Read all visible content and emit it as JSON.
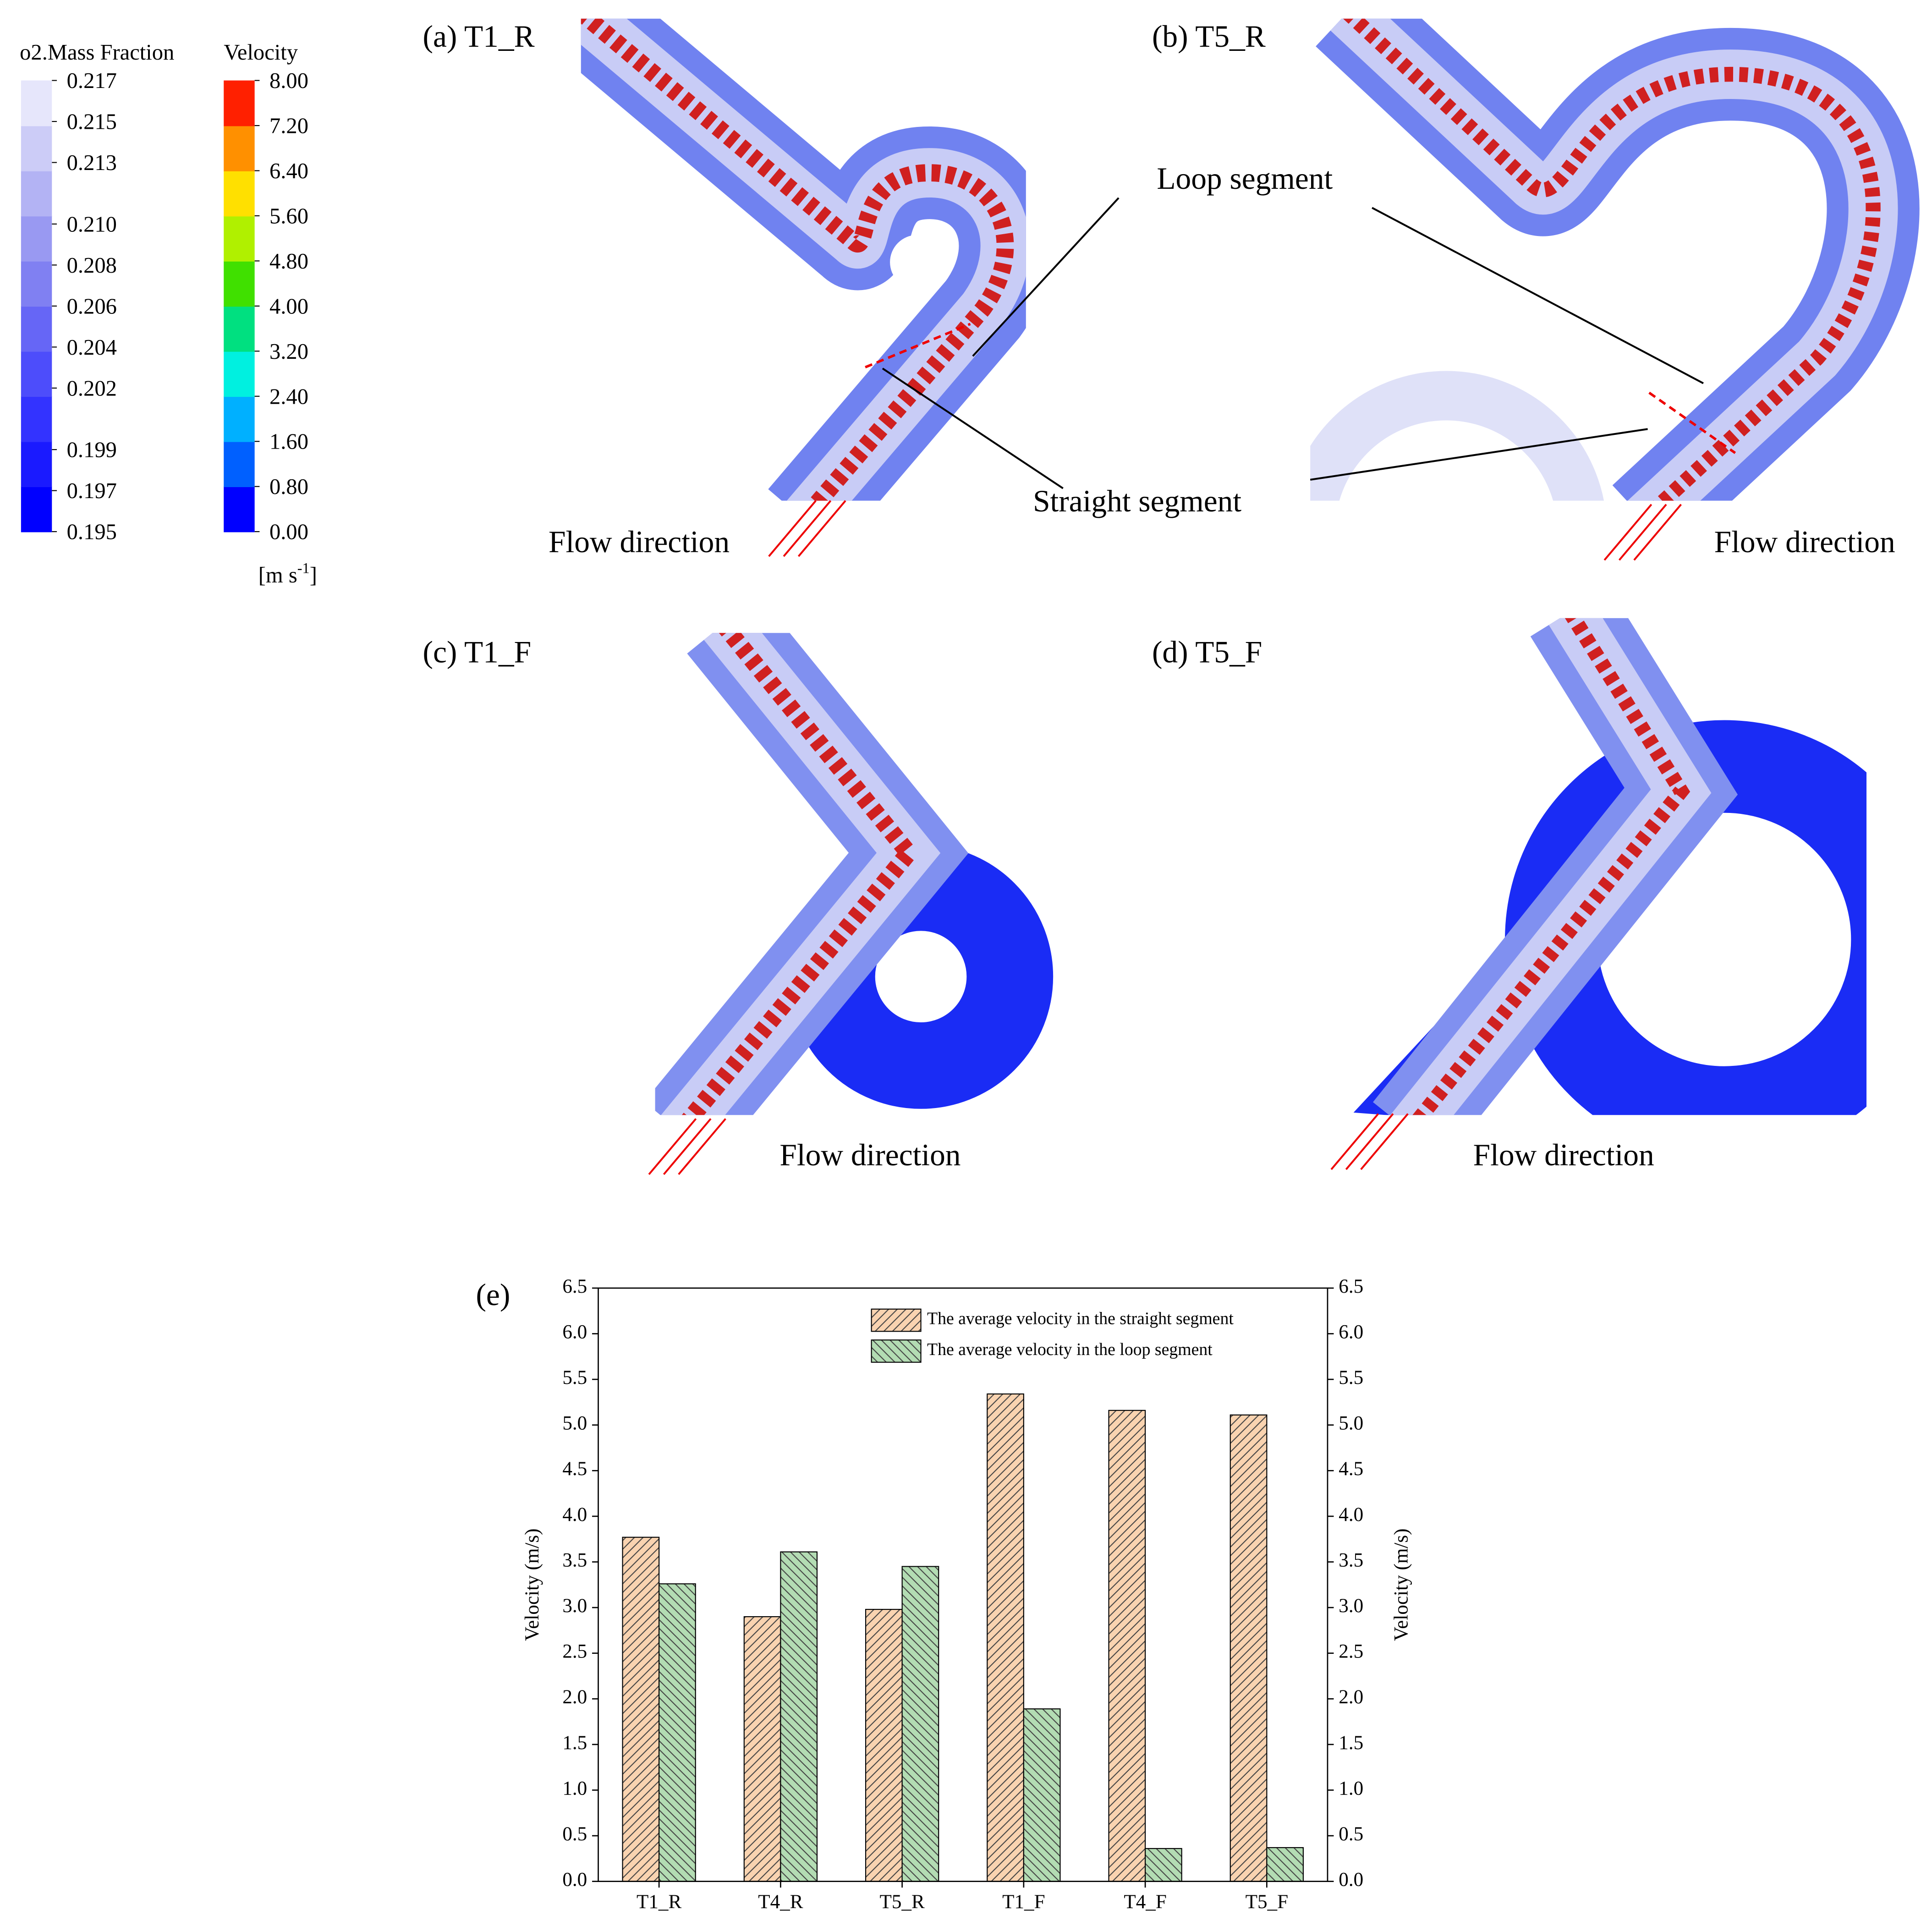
{
  "colorbars": [
    {
      "title": "o2.Mass Fraction",
      "lim": [
        0.195,
        0.217
      ],
      "ticks": [
        0.217,
        0.215,
        0.213,
        {
          "value": 0.21,
          "label": "0.210"
        },
        0.208,
        0.206,
        0.204,
        0.202,
        0.199,
        0.197,
        0.195
      ],
      "colors": [
        "#0000ff",
        "#1a1aff",
        "#3333ff",
        "#4d4dfb",
        "#6666f6",
        "#8080f2",
        "#9999f2",
        "#b3b3f4",
        "#ccccf7",
        "#e6e6fb"
      ]
    },
    {
      "title": "Velocity",
      "lim": [
        0,
        8
      ],
      "ticks": [
        {
          "value": 8,
          "label": "8.00"
        },
        {
          "value": 7.2,
          "label": "7.20"
        },
        {
          "value": 6.4,
          "label": "6.40"
        },
        {
          "value": 5.6,
          "label": "5.60"
        },
        {
          "value": 4.8,
          "label": "4.80"
        },
        {
          "value": 4,
          "label": "4.00"
        },
        {
          "value": 3.2,
          "label": "3.20"
        },
        {
          "value": 2.4,
          "label": "2.40"
        },
        {
          "value": 1.6,
          "label": "1.60"
        },
        {
          "value": 0.8,
          "label": "0.80"
        },
        {
          "value": 0,
          "label": "0.00"
        }
      ],
      "colors": [
        "#0000ff",
        "#0060ff",
        "#00b0ff",
        "#00f0e0",
        "#00e080",
        "#40e000",
        "#b0f000",
        "#ffe000",
        "#ff9000",
        "#ff2000"
      ],
      "unit": [
        "[m s",
        "-1",
        "]"
      ]
    }
  ],
  "panels": [
    {
      "label": "(a) T1_R"
    },
    {
      "label": "(b) T5_R"
    },
    {
      "label": "(c) T1_F"
    },
    {
      "label": "(d) T5_F"
    }
  ],
  "annotations": {
    "loop_segment": "Loop segment",
    "straight_segment": "Straight segment",
    "flow_direction": [
      "Flow direction",
      "Flow direction",
      "Flow direction",
      "Flow direction"
    ]
  },
  "chart_data": {
    "type": "bar",
    "title": "(e)",
    "categories": [
      "T1_R",
      "T4_R",
      "T5_R",
      "T1_F",
      "T4_F",
      "T5_F"
    ],
    "series": [
      {
        "name": "The average velocity in the straight segment",
        "color": "#f9d3b0",
        "hatch": "/",
        "values": [
          3.77,
          2.9,
          2.98,
          5.34,
          5.16,
          5.11
        ]
      },
      {
        "name": "The average velocity in the loop segment",
        "color": "#b3dcb3",
        "hatch": "\\",
        "values": [
          3.26,
          3.61,
          3.45,
          1.89,
          0.36,
          0.37
        ]
      }
    ],
    "ylabel": "Velocity (m/s)",
    "y2label": "Velocity (m/s)",
    "ylim": [
      0,
      6.5
    ],
    "y2lim": [
      0,
      6.5
    ],
    "yticks": [
      {
        "value": 0,
        "label": "0.0"
      },
      0.5,
      {
        "value": 1,
        "label": "1.0"
      },
      1.5,
      {
        "value": 2,
        "label": "2.0"
      },
      2.5,
      {
        "value": 3,
        "label": "3.0"
      },
      3.5,
      {
        "value": 4,
        "label": "4.0"
      },
      4.5,
      {
        "value": 5,
        "label": "5.0"
      },
      5.5,
      {
        "value": 6,
        "label": "6.0"
      },
      6.5
    ],
    "y2ticks": [
      {
        "value": 0,
        "label": "0.0"
      },
      0.5,
      {
        "value": 1,
        "label": "1.0"
      },
      1.5,
      {
        "value": 2,
        "label": "2.0"
      },
      2.5,
      {
        "value": 3,
        "label": "3.0"
      },
      3.5,
      {
        "value": 4,
        "label": "4.0"
      },
      4.5,
      {
        "value": 5,
        "label": "5.0"
      },
      5.5,
      {
        "value": 6,
        "label": "6.0"
      },
      6.5
    ],
    "legend": "upper right"
  }
}
